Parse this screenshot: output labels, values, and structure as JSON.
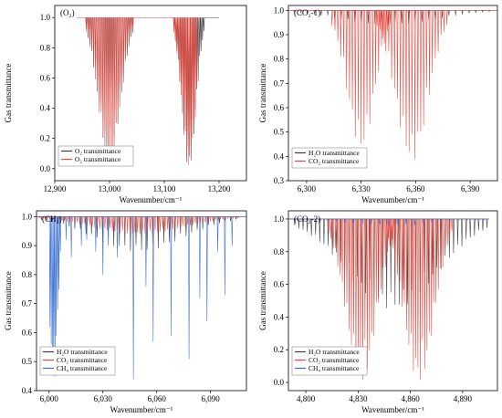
{
  "colors": {
    "o2": "#e8463c",
    "h2o": "#3d3d3d",
    "co2": "#e8463c",
    "ch4": "#3b6fd0"
  },
  "chart_data": [
    {
      "type": "line",
      "tag": "(O₂)",
      "xlabel": "Wavenumber/cm⁻¹",
      "ylabel": "Gas transmittance",
      "xlim": [
        12900,
        13250
      ],
      "ylim": [
        -0.08,
        1.08
      ],
      "xticks": [
        12900,
        13000,
        13100,
        13200
      ],
      "xticklabels": [
        "12,900",
        "13,000",
        "13,100",
        "13,200"
      ],
      "yticks": [
        0.0,
        0.2,
        0.4,
        0.6,
        0.8,
        1.0
      ],
      "yticklabels": [
        "0.0",
        "0.2",
        "0.4",
        "0.6",
        "0.8",
        "1.0"
      ],
      "legend_position": "bottom-left",
      "series": [
        {
          "name": "O₂ transmittance",
          "color_key": "h2o",
          "x_range": [
            12940,
            13200
          ],
          "baseline": 1.0,
          "bands": [
            {
              "center": 13000,
              "spacing": 3.4,
              "n": 26,
              "depths": [
                0.0,
                0.95
              ]
            },
            {
              "center": 13145,
              "spacing": 2.6,
              "n": 22,
              "depths": [
                0.0,
                1.0
              ]
            }
          ]
        },
        {
          "name": "O₂ transmittance",
          "color_key": "o2",
          "x_range": [
            12940,
            13160
          ],
          "baseline": 1.0,
          "bands": [
            {
              "center": 13000,
              "spacing": 3.4,
              "n": 26,
              "depths": [
                0.0,
                0.98
              ]
            },
            {
              "center": 13145,
              "spacing": 2.6,
              "n": 22,
              "depths": [
                0.0,
                1.0
              ]
            }
          ]
        }
      ]
    },
    {
      "type": "line",
      "tag": "(CO₂-1)",
      "xlabel": "Wavenumber/cm⁻¹",
      "ylabel": "Gas transmittance",
      "xlim": [
        6290,
        6405
      ],
      "ylim": [
        0.3,
        1.02
      ],
      "xticks": [
        6300,
        6330,
        6360,
        6390
      ],
      "xticklabels": [
        "6,300",
        "6,330",
        "6,360",
        "6,390"
      ],
      "yticks": [
        0.3,
        0.4,
        0.5,
        0.6,
        0.7,
        0.8,
        0.9,
        1.0
      ],
      "yticklabels": [
        "0.3",
        "0.4",
        "0.5",
        "0.6",
        "0.7",
        "0.8",
        "0.9",
        "1.0"
      ],
      "legend_position": "bottom-left",
      "series": [
        {
          "name": "H₂O transmittance",
          "color_key": "h2o",
          "x_range": [
            6290,
            6405
          ],
          "baseline": 1.0,
          "bands": [
            {
              "center": 6345,
              "spacing": 3.7,
              "n": 31,
              "depths": [
                0.0,
                0.06
              ]
            }
          ]
        },
        {
          "name": "CO₂ transmittance",
          "color_key": "co2",
          "x_range": [
            6290,
            6405
          ],
          "baseline": 1.0,
          "bands": [
            {
              "center": 6330,
              "spacing": 1.6,
              "n": 21,
              "depths": [
                0.0,
                0.57
              ]
            },
            {
              "center": 6358,
              "spacing": 1.6,
              "n": 25,
              "depths": [
                0.0,
                0.62
              ]
            }
          ]
        }
      ]
    },
    {
      "type": "line",
      "tag": "(CH₄)",
      "xlabel": "Wavenumber/cm⁻¹",
      "ylabel": "Gas transmittance",
      "xlim": [
        5993,
        6110
      ],
      "ylim": [
        0.4,
        1.02
      ],
      "xticks": [
        6000,
        6030,
        6060,
        6090
      ],
      "xticklabels": [
        "6,000",
        "6,030",
        "6,060",
        "6,090"
      ],
      "yticks": [
        0.4,
        0.5,
        0.6,
        0.7,
        0.8,
        0.9,
        1.0
      ],
      "yticklabels": [
        "0.4",
        "0.5",
        "0.6",
        "0.7",
        "0.8",
        "0.9",
        "1.0"
      ],
      "legend_position": "bottom-left",
      "series": [
        {
          "name": "H₂O transmittance",
          "color_key": "h2o",
          "x_range": [
            5993,
            6110
          ],
          "baseline": 1.0,
          "bands": [
            {
              "center": 6050,
              "spacing": 3.1,
              "n": 36,
              "depths": [
                0.0,
                0.12
              ]
            }
          ]
        },
        {
          "name": "CO₂ transmittance",
          "color_key": "co2",
          "x_range": [
            5993,
            6110
          ],
          "baseline": 1.0,
          "bands": [
            {
              "center": 6050,
              "spacing": 1.4,
              "n": 80,
              "depths": [
                0.0,
                0.06
              ]
            }
          ]
        },
        {
          "name": "CH₄ transmittance",
          "color_key": "ch4",
          "x_range": [
            5993,
            6110
          ],
          "baseline": 1.0,
          "lines": [
            [
              6000.5,
              0.38
            ],
            [
              6001.2,
              0.44
            ],
            [
              6002.0,
              0.52
            ],
            [
              6002.6,
              0.48
            ],
            [
              6003.3,
              0.55
            ],
            [
              6004.0,
              0.41
            ],
            [
              6004.8,
              0.32
            ],
            [
              6005.5,
              0.25
            ],
            [
              6006.3,
              0.12
            ],
            [
              6009.5,
              0.08
            ],
            [
              6012.4,
              0.14
            ],
            [
              6018.0,
              0.1
            ],
            [
              6021.0,
              0.08
            ],
            [
              6026.0,
              0.12
            ],
            [
              6030.0,
              0.2
            ],
            [
              6033.0,
              0.1
            ],
            [
              6038.0,
              0.14
            ],
            [
              6047.0,
              0.56
            ],
            [
              6054.0,
              0.24
            ],
            [
              6058.0,
              0.43
            ],
            [
              6068.0,
              0.41
            ],
            [
              6078.0,
              0.49
            ],
            [
              6084.0,
              0.28
            ],
            [
              6088.0,
              0.36
            ],
            [
              6094.0,
              0.12
            ],
            [
              6098.0,
              0.27
            ],
            [
              6102.0,
              0.1
            ]
          ]
        }
      ]
    },
    {
      "type": "line",
      "tag": "(CO₂-2)",
      "xlabel": "Wavenumber/cm⁻¹",
      "ylabel": "Gas transmittance",
      "xlim": [
        4790,
        4910
      ],
      "ylim": [
        -0.05,
        1.05
      ],
      "xticks": [
        4800,
        4830,
        4860,
        4890
      ],
      "xticklabels": [
        "4,800",
        "4,830",
        "4,860",
        "4,890"
      ],
      "yticks": [
        0.0,
        0.2,
        0.4,
        0.6,
        0.8,
        1.0
      ],
      "yticklabels": [
        "0.0",
        "0.2",
        "0.4",
        "0.6",
        "0.8",
        "1.0"
      ],
      "legend_position": "bottom-left",
      "series": [
        {
          "name": "H₂O transmittance",
          "color_key": "h2o",
          "x_range": [
            4790,
            4905
          ],
          "baseline": 1.0,
          "bands": [
            {
              "center": 4850,
              "spacing": 2.4,
              "n": 48,
              "depths": [
                0.0,
                0.55
              ]
            }
          ]
        },
        {
          "name": "CO₂ transmittance",
          "color_key": "co2",
          "x_range": [
            4790,
            4905
          ],
          "baseline": 1.0,
          "bands": [
            {
              "center": 4832,
              "spacing": 1.3,
              "n": 30,
              "depths": [
                0.0,
                1.0
              ]
            },
            {
              "center": 4865,
              "spacing": 1.3,
              "n": 30,
              "depths": [
                0.0,
                1.0
              ]
            }
          ]
        },
        {
          "name": "CH₄ transmittance",
          "color_key": "ch4",
          "x_range": [
            4790,
            4905
          ],
          "baseline": 1.0,
          "bands": [
            {
              "center": 4850,
              "spacing": 5.0,
              "n": 22,
              "depths": [
                0.0,
                0.04
              ]
            }
          ]
        }
      ]
    }
  ]
}
